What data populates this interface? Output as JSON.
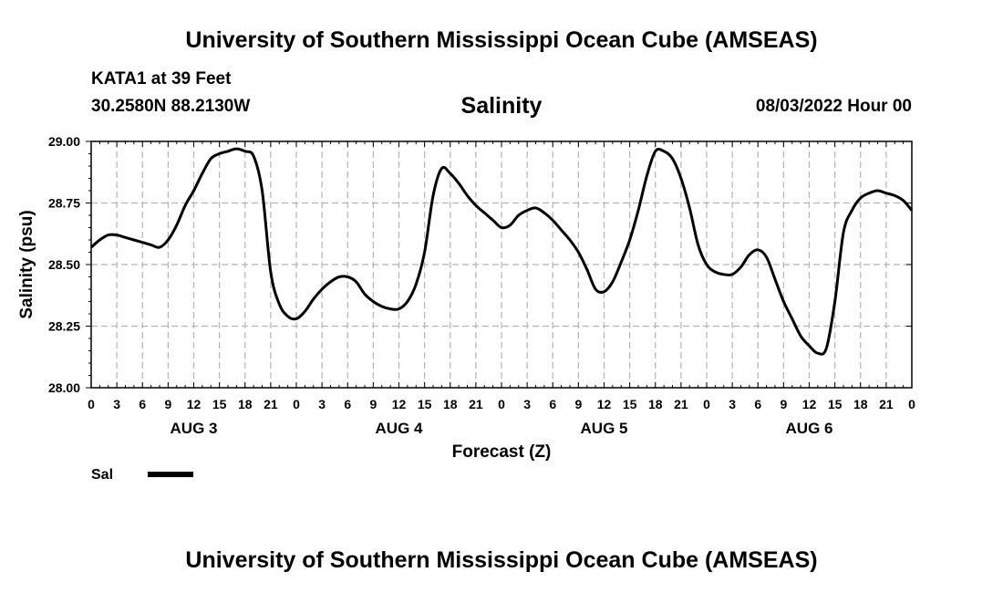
{
  "header": {
    "top_title": "University of Southern Mississippi Ocean Cube (AMSEAS)",
    "station": "KATA1 at 39 Feet",
    "coords": "30.2580N  88.2130W",
    "datetime": "08/03/2022 Hour 00",
    "bottom_title": "University of Southern Mississippi Ocean Cube (AMSEAS)"
  },
  "chart_data": {
    "type": "line",
    "title": "Salinity",
    "xlabel": "Forecast (Z)",
    "ylabel": "Salinity (psu)",
    "xlim": [
      0,
      96
    ],
    "ylim": [
      28.0,
      29.0
    ],
    "grid": true,
    "yticks": [
      28.0,
      28.25,
      28.5,
      28.75,
      29.0
    ],
    "ytick_labels": [
      "28.00",
      "28.25",
      "28.50",
      "28.75",
      "29.00"
    ],
    "xtick_labels": [
      "0",
      "3",
      "6",
      "9",
      "12",
      "15",
      "18",
      "21",
      "0",
      "3",
      "6",
      "9",
      "12",
      "15",
      "18",
      "21",
      "0",
      "3",
      "6",
      "9",
      "12",
      "15",
      "18",
      "21",
      "0",
      "3",
      "6",
      "9",
      "12",
      "15",
      "18",
      "21",
      "0"
    ],
    "day_labels": [
      {
        "label": "AUG 3",
        "at_hour": 12
      },
      {
        "label": "AUG 4",
        "at_hour": 36
      },
      {
        "label": "AUG 5",
        "at_hour": 60
      },
      {
        "label": "AUG 6",
        "at_hour": 84
      }
    ],
    "legend": {
      "position": "bottom-left",
      "entries": [
        "Sal"
      ]
    },
    "series": [
      {
        "name": "Sal",
        "x": [
          0,
          1,
          2,
          3,
          4,
          5,
          6,
          7,
          8,
          9,
          10,
          11,
          12,
          13,
          14,
          15,
          16,
          17,
          18,
          19,
          20,
          21,
          22,
          23,
          24,
          25,
          26,
          27,
          28,
          29,
          30,
          31,
          32,
          33,
          34,
          35,
          36,
          37,
          38,
          39,
          40,
          41,
          42,
          43,
          44,
          45,
          46,
          47,
          48,
          49,
          50,
          51,
          52,
          53,
          54,
          55,
          56,
          57,
          58,
          59,
          60,
          61,
          62,
          63,
          64,
          65,
          66,
          67,
          68,
          69,
          70,
          71,
          72,
          73,
          74,
          75,
          76,
          77,
          78,
          79,
          80,
          81,
          82,
          83,
          84,
          85,
          86,
          87,
          88,
          89,
          90,
          91,
          92,
          93,
          94,
          95,
          96
        ],
        "values": [
          28.57,
          28.6,
          28.62,
          28.62,
          28.61,
          28.6,
          28.59,
          28.58,
          28.57,
          28.6,
          28.66,
          28.74,
          28.8,
          28.87,
          28.93,
          28.95,
          28.96,
          28.97,
          28.96,
          28.94,
          28.8,
          28.47,
          28.34,
          28.29,
          28.28,
          28.31,
          28.36,
          28.4,
          28.43,
          28.45,
          28.45,
          28.43,
          28.38,
          28.35,
          28.33,
          28.32,
          28.32,
          28.35,
          28.42,
          28.55,
          28.78,
          28.89,
          28.87,
          28.83,
          28.78,
          28.74,
          28.71,
          28.68,
          28.65,
          28.66,
          28.7,
          28.72,
          28.73,
          28.71,
          28.68,
          28.64,
          28.6,
          28.55,
          28.48,
          28.4,
          28.39,
          28.43,
          28.51,
          28.6,
          28.72,
          28.86,
          28.96,
          28.96,
          28.93,
          28.85,
          28.73,
          28.58,
          28.5,
          28.47,
          28.46,
          28.46,
          28.49,
          28.54,
          28.56,
          28.53,
          28.44,
          28.35,
          28.28,
          28.21,
          28.17,
          28.14,
          28.16,
          28.35,
          28.63,
          28.72,
          28.77,
          28.79,
          28.8,
          28.79,
          28.78,
          28.76,
          28.72
        ],
        "color": "#000000"
      }
    ]
  }
}
